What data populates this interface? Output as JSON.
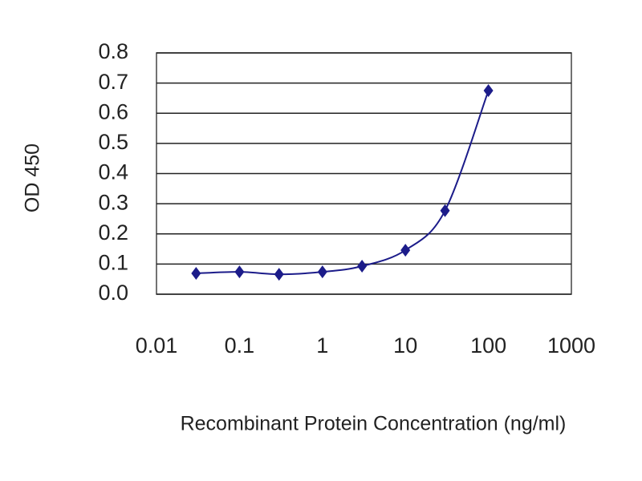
{
  "chart_data": {
    "type": "line",
    "xlabel": "Recombinant Protein Concentration (ng/ml)",
    "ylabel": "OD 450",
    "x": [
      0.03,
      0.1,
      0.3,
      1,
      3,
      10,
      30,
      100
    ],
    "series": [
      {
        "color": "#1c1c8a",
        "values": [
          0.069,
          0.074,
          0.066,
          0.074,
          0.093,
          0.146,
          0.277,
          0.675
        ]
      }
    ],
    "xscale": "log",
    "xlim": [
      0.01,
      1000
    ],
    "xticks": [
      0.01,
      0.1,
      1,
      10,
      100,
      1000
    ],
    "ylim": [
      0,
      0.8
    ],
    "yticks": [
      {
        "value": 0,
        "label": "0.0"
      },
      0.1,
      0.2,
      0.3,
      0.4,
      0.5,
      0.6,
      0.7,
      0.8
    ],
    "grid": true
  }
}
